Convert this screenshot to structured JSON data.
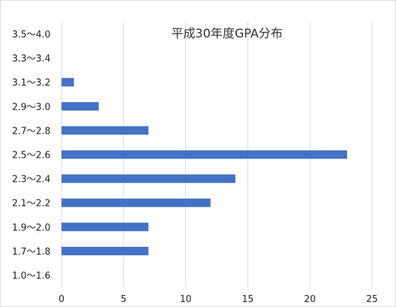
{
  "chart_data": {
    "type": "bar",
    "orientation": "horizontal",
    "title": "平成30年度GPA分布",
    "xlabel": "",
    "ylabel": "",
    "categories": [
      "1.0〜1.6",
      "1.7〜1.8",
      "1.9〜2.0",
      "2.1〜2.2",
      "2.3〜2.4",
      "2.5〜2.6",
      "2.7〜2.8",
      "2.9〜3.0",
      "3.1〜3.2",
      "3.3〜3.4",
      "3.5〜4.0"
    ],
    "values": [
      0,
      7,
      7,
      12,
      14,
      23,
      7,
      3,
      1,
      0,
      0
    ],
    "xlim": [
      0,
      25
    ],
    "xticks": [
      0,
      5,
      10,
      15,
      20,
      25
    ],
    "grid": "vertical",
    "legend": "none",
    "bar_color": "#4472c4",
    "grid_color": "#d9d9d9"
  }
}
